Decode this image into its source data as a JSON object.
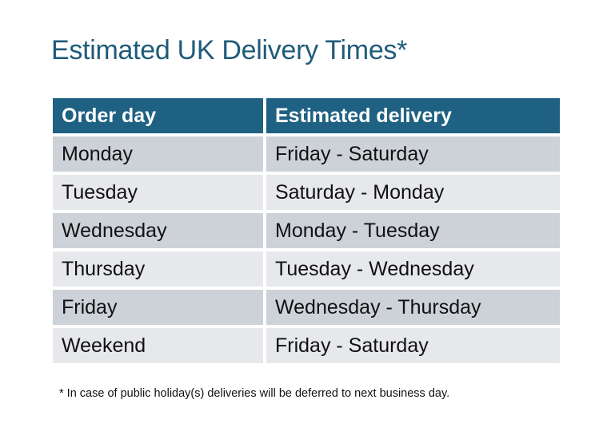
{
  "title": "Estimated UK Delivery Times*",
  "table": {
    "headers": [
      "Order day",
      "Estimated delivery"
    ],
    "rows": [
      [
        "Monday",
        "Friday - Saturday"
      ],
      [
        "Tuesday",
        "Saturday - Monday"
      ],
      [
        "Wednesday",
        "Monday - Tuesday"
      ],
      [
        "Thursday",
        "Tuesday - Wednesday"
      ],
      [
        "Friday",
        "Wednesday - Thursday"
      ],
      [
        "Weekend",
        "Friday - Saturday"
      ]
    ]
  },
  "footnote": "* In case of public holiday(s) deliveries will be deferred to next business day.",
  "colors": {
    "header": "#1f6182",
    "title": "#1f5b7a",
    "row_dark": "#cdd1d8",
    "row_light": "#e6e8eb"
  }
}
